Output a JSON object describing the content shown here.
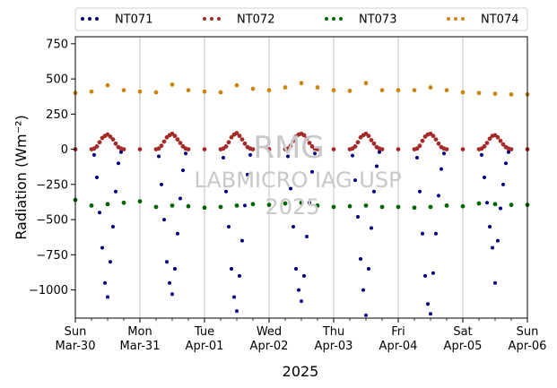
{
  "chart_data": {
    "type": "scatter",
    "ylabel": "Radiation (Wm⁻²)",
    "xlabel": "2025",
    "xlim": [
      "2025-03-30",
      "2025-04-06"
    ],
    "ylim": [
      -1200,
      800
    ],
    "yticks": [
      750,
      500,
      250,
      0,
      -250,
      -500,
      -750,
      -1000
    ],
    "ytick_labels": [
      "750",
      "500",
      "250",
      "0",
      "−250",
      "−500",
      "−750",
      "−1000"
    ],
    "xticks": [
      {
        "date": "2025-03-30",
        "day": "Sun",
        "label": "Mar-30"
      },
      {
        "date": "2025-03-31",
        "day": "Mon",
        "label": "Mar-31"
      },
      {
        "date": "2025-04-01",
        "day": "Tue",
        "label": "Apr-01"
      },
      {
        "date": "2025-04-02",
        "day": "Wed",
        "label": "Apr-02"
      },
      {
        "date": "2025-04-03",
        "day": "Thu",
        "label": "Apr-03"
      },
      {
        "date": "2025-04-04",
        "day": "Fri",
        "label": "Apr-04"
      },
      {
        "date": "2025-04-05",
        "day": "Sat",
        "label": "Apr-05"
      },
      {
        "date": "2025-04-06",
        "day": "Sun",
        "label": "Apr-06"
      }
    ],
    "grid": "vertical",
    "legend_position": "top",
    "series": [
      {
        "name": "NT071",
        "color": "#00007f",
        "x": [
          "2025-03-30 00:00",
          "2025-03-30 06:00",
          "2025-03-30 07:00",
          "2025-03-30 08:00",
          "2025-03-30 09:00",
          "2025-03-30 10:00",
          "2025-03-30 11:00",
          "2025-03-30 12:00",
          "2025-03-30 13:00",
          "2025-03-30 14:00",
          "2025-03-30 15:00",
          "2025-03-30 16:00",
          "2025-03-30 17:00",
          "2025-03-30 18:00",
          "2025-03-31 00:00",
          "2025-03-31 06:00",
          "2025-03-31 07:00",
          "2025-03-31 08:00",
          "2025-03-31 09:00",
          "2025-03-31 10:00",
          "2025-03-31 11:00",
          "2025-03-31 12:00",
          "2025-03-31 13:00",
          "2025-03-31 14:00",
          "2025-03-31 15:00",
          "2025-03-31 16:00",
          "2025-03-31 17:00",
          "2025-03-31 18:00",
          "2025-04-01 00:00",
          "2025-04-01 06:00",
          "2025-04-01 07:00",
          "2025-04-01 08:00",
          "2025-04-01 09:00",
          "2025-04-01 10:00",
          "2025-04-01 11:00",
          "2025-04-01 12:00",
          "2025-04-01 13:00",
          "2025-04-01 14:00",
          "2025-04-01 15:00",
          "2025-04-01 16:00",
          "2025-04-01 17:00",
          "2025-04-01 18:00",
          "2025-04-02 00:00",
          "2025-04-02 06:00",
          "2025-04-02 07:00",
          "2025-04-02 08:00",
          "2025-04-02 09:00",
          "2025-04-02 10:00",
          "2025-04-02 11:00",
          "2025-04-02 12:00",
          "2025-04-02 13:00",
          "2025-04-02 14:00",
          "2025-04-02 15:00",
          "2025-04-02 16:00",
          "2025-04-02 17:00",
          "2025-04-02 18:00",
          "2025-04-03 00:00",
          "2025-04-03 06:00",
          "2025-04-03 07:00",
          "2025-04-03 08:00",
          "2025-04-03 09:00",
          "2025-04-03 10:00",
          "2025-04-03 11:00",
          "2025-04-03 12:00",
          "2025-04-03 13:00",
          "2025-04-03 14:00",
          "2025-04-03 15:00",
          "2025-04-03 16:00",
          "2025-04-03 17:00",
          "2025-04-03 18:00",
          "2025-04-04 00:00",
          "2025-04-04 06:00",
          "2025-04-04 07:00",
          "2025-04-04 08:00",
          "2025-04-04 09:00",
          "2025-04-04 10:00",
          "2025-04-04 11:00",
          "2025-04-04 12:00",
          "2025-04-04 13:00",
          "2025-04-04 14:00",
          "2025-04-04 15:00",
          "2025-04-04 16:00",
          "2025-04-04 17:00",
          "2025-04-04 18:00",
          "2025-04-05 00:00",
          "2025-04-05 06:00",
          "2025-04-05 07:00",
          "2025-04-05 08:00",
          "2025-04-05 09:00",
          "2025-04-05 10:00",
          "2025-04-05 11:00",
          "2025-04-05 12:00",
          "2025-04-05 13:00",
          "2025-04-05 14:00",
          "2025-04-05 15:00",
          "2025-04-05 16:00",
          "2025-04-05 17:00",
          "2025-04-05 18:00",
          "2025-04-06 00:00"
        ],
        "y": [
          0,
          0,
          -40,
          -200,
          -450,
          -700,
          -950,
          -1050,
          -800,
          -550,
          -300,
          -100,
          -20,
          0,
          0,
          0,
          -50,
          -250,
          -500,
          -800,
          -950,
          -1030,
          -850,
          -600,
          -350,
          -150,
          -30,
          0,
          0,
          0,
          -60,
          -300,
          -550,
          -850,
          -1050,
          -1150,
          -900,
          -650,
          -400,
          -180,
          -40,
          0,
          0,
          0,
          -50,
          -280,
          -550,
          -850,
          -1000,
          -1080,
          -900,
          -620,
          -380,
          -160,
          -30,
          0,
          0,
          0,
          -45,
          -220,
          -480,
          -780,
          -1000,
          -1180,
          -850,
          -560,
          -300,
          -120,
          -20,
          0,
          0,
          0,
          -60,
          -300,
          -600,
          -900,
          -1100,
          -1170,
          -880,
          -600,
          -330,
          -140,
          -30,
          0,
          0,
          0,
          -40,
          -200,
          -380,
          -550,
          -700,
          -950,
          -650,
          -420,
          -250,
          -100,
          -20,
          0,
          0
        ]
      },
      {
        "name": "NT072",
        "color": "#a52a2a",
        "x": [
          "2025-03-30 00:00",
          "2025-03-30 06:00",
          "2025-03-30 07:00",
          "2025-03-30 08:00",
          "2025-03-30 09:00",
          "2025-03-30 10:00",
          "2025-03-30 11:00",
          "2025-03-30 12:00",
          "2025-03-30 13:00",
          "2025-03-30 14:00",
          "2025-03-30 15:00",
          "2025-03-30 16:00",
          "2025-03-30 17:00",
          "2025-03-30 18:00",
          "2025-03-31 00:00",
          "2025-03-31 06:00",
          "2025-03-31 07:00",
          "2025-03-31 08:00",
          "2025-03-31 09:00",
          "2025-03-31 10:00",
          "2025-03-31 11:00",
          "2025-03-31 12:00",
          "2025-03-31 13:00",
          "2025-03-31 14:00",
          "2025-03-31 15:00",
          "2025-03-31 16:00",
          "2025-03-31 17:00",
          "2025-03-31 18:00",
          "2025-04-01 00:00",
          "2025-04-01 06:00",
          "2025-04-01 07:00",
          "2025-04-01 08:00",
          "2025-04-01 09:00",
          "2025-04-01 10:00",
          "2025-04-01 11:00",
          "2025-04-01 12:00",
          "2025-04-01 13:00",
          "2025-04-01 14:00",
          "2025-04-01 15:00",
          "2025-04-01 16:00",
          "2025-04-01 17:00",
          "2025-04-01 18:00",
          "2025-04-02 00:00",
          "2025-04-02 06:00",
          "2025-04-02 07:00",
          "2025-04-02 08:00",
          "2025-04-02 09:00",
          "2025-04-02 10:00",
          "2025-04-02 11:00",
          "2025-04-02 12:00",
          "2025-04-02 13:00",
          "2025-04-02 14:00",
          "2025-04-02 15:00",
          "2025-04-02 16:00",
          "2025-04-02 17:00",
          "2025-04-02 18:00",
          "2025-04-03 00:00",
          "2025-04-03 06:00",
          "2025-04-03 07:00",
          "2025-04-03 08:00",
          "2025-04-03 09:00",
          "2025-04-03 10:00",
          "2025-04-03 11:00",
          "2025-04-03 12:00",
          "2025-04-03 13:00",
          "2025-04-03 14:00",
          "2025-04-03 15:00",
          "2025-04-03 16:00",
          "2025-04-03 17:00",
          "2025-04-03 18:00",
          "2025-04-04 00:00",
          "2025-04-04 06:00",
          "2025-04-04 07:00",
          "2025-04-04 08:00",
          "2025-04-04 09:00",
          "2025-04-04 10:00",
          "2025-04-04 11:00",
          "2025-04-04 12:00",
          "2025-04-04 13:00",
          "2025-04-04 14:00",
          "2025-04-04 15:00",
          "2025-04-04 16:00",
          "2025-04-04 17:00",
          "2025-04-04 18:00",
          "2025-04-05 00:00",
          "2025-04-05 06:00",
          "2025-04-05 07:00",
          "2025-04-05 08:00",
          "2025-04-05 09:00",
          "2025-04-05 10:00",
          "2025-04-05 11:00",
          "2025-04-05 12:00",
          "2025-04-05 13:00",
          "2025-04-05 14:00",
          "2025-04-05 15:00",
          "2025-04-05 16:00",
          "2025-04-05 17:00",
          "2025-04-05 18:00",
          "2025-04-06 00:00"
        ],
        "y": [
          0,
          0,
          5,
          20,
          50,
          80,
          95,
          105,
          90,
          70,
          40,
          15,
          5,
          0,
          0,
          0,
          5,
          25,
          55,
          85,
          100,
          110,
          95,
          70,
          45,
          20,
          5,
          0,
          0,
          0,
          5,
          20,
          50,
          85,
          105,
          115,
          95,
          70,
          40,
          15,
          5,
          0,
          0,
          0,
          5,
          25,
          60,
          90,
          105,
          110,
          100,
          75,
          45,
          20,
          5,
          0,
          0,
          0,
          5,
          20,
          50,
          85,
          100,
          110,
          95,
          65,
          40,
          15,
          5,
          0,
          0,
          0,
          5,
          25,
          60,
          90,
          105,
          110,
          95,
          70,
          40,
          15,
          5,
          0,
          0,
          0,
          5,
          20,
          45,
          75,
          95,
          100,
          85,
          60,
          35,
          15,
          5,
          0,
          0
        ]
      },
      {
        "name": "NT073",
        "color": "#006400",
        "x": [
          "2025-03-30 00:00",
          "2025-03-30 06:00",
          "2025-03-30 12:00",
          "2025-03-30 18:00",
          "2025-03-31 00:00",
          "2025-03-31 06:00",
          "2025-03-31 12:00",
          "2025-03-31 18:00",
          "2025-04-01 00:00",
          "2025-04-01 06:00",
          "2025-04-01 12:00",
          "2025-04-01 18:00",
          "2025-04-02 00:00",
          "2025-04-02 06:00",
          "2025-04-02 12:00",
          "2025-04-02 18:00",
          "2025-04-03 00:00",
          "2025-04-03 06:00",
          "2025-04-03 12:00",
          "2025-04-03 18:00",
          "2025-04-04 00:00",
          "2025-04-04 06:00",
          "2025-04-04 12:00",
          "2025-04-04 18:00",
          "2025-04-05 00:00",
          "2025-04-05 06:00",
          "2025-04-05 12:00",
          "2025-04-05 18:00",
          "2025-04-06 00:00"
        ],
        "y": [
          -360,
          -400,
          -390,
          -380,
          -370,
          -410,
          -400,
          -405,
          -415,
          -410,
          -400,
          -390,
          -395,
          -385,
          -380,
          -400,
          -410,
          -405,
          -400,
          -410,
          -410,
          -415,
          -410,
          -400,
          -405,
          -385,
          -390,
          -395,
          -395
        ]
      },
      {
        "name": "NT074",
        "color": "#c8860a",
        "x": [
          "2025-03-30 00:00",
          "2025-03-30 06:00",
          "2025-03-30 12:00",
          "2025-03-30 18:00",
          "2025-03-31 00:00",
          "2025-03-31 06:00",
          "2025-03-31 12:00",
          "2025-03-31 18:00",
          "2025-04-01 00:00",
          "2025-04-01 06:00",
          "2025-04-01 12:00",
          "2025-04-01 18:00",
          "2025-04-02 00:00",
          "2025-04-02 06:00",
          "2025-04-02 12:00",
          "2025-04-02 18:00",
          "2025-04-03 00:00",
          "2025-04-03 06:00",
          "2025-04-03 12:00",
          "2025-04-03 18:00",
          "2025-04-04 00:00",
          "2025-04-04 06:00",
          "2025-04-04 12:00",
          "2025-04-04 18:00",
          "2025-04-05 00:00",
          "2025-04-05 06:00",
          "2025-04-05 12:00",
          "2025-04-05 18:00",
          "2025-04-06 00:00"
        ],
        "y": [
          400,
          410,
          455,
          420,
          410,
          405,
          460,
          420,
          410,
          405,
          455,
          430,
          420,
          440,
          470,
          440,
          420,
          415,
          470,
          420,
          420,
          420,
          440,
          420,
          405,
          400,
          395,
          390,
          390
        ]
      }
    ]
  },
  "watermark": {
    "line1": "RMG",
    "line2": "LABMICRO IAG USP",
    "line3": "2025"
  }
}
